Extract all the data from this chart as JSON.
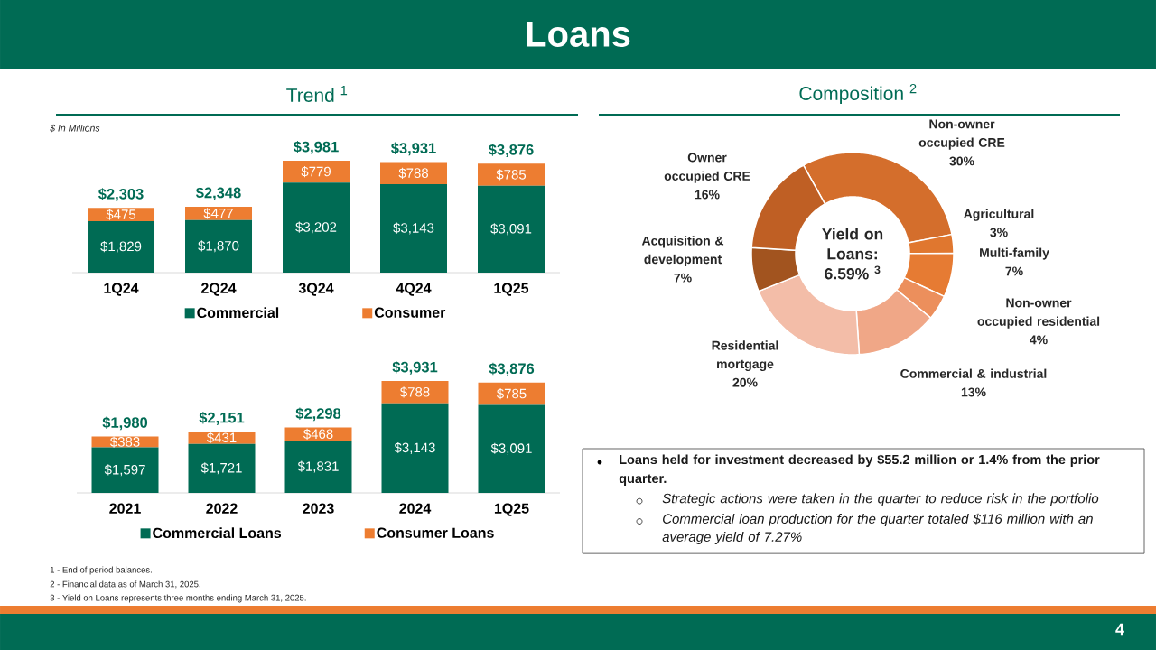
{
  "chart_data": [
    {
      "type": "bar",
      "title": "Loans",
      "subtitle": "Trend $^{1}$",
      "annotations": [
        "$ In Millions"
      ],
      "categories": [
        "1Q24",
        "2Q24",
        "3Q24",
        "4Q24",
        "1Q25"
      ],
      "stacked": true,
      "legend": "bottom",
      "series": [
        {
          "name": "Commercial",
          "color": "#006b54",
          "values": [
            1829,
            1870,
            3202,
            3143,
            3091
          ],
          "value_labels": [
            "$1,829",
            "$1,870",
            "$3,202",
            "$3,143",
            "$3,091"
          ]
        },
        {
          "name": "Consumer",
          "color": "#ed7d31",
          "values": [
            475,
            477,
            779,
            788,
            785
          ],
          "value_labels": [
            "$475",
            "$477",
            "$779",
            "$788",
            "$785"
          ]
        }
      ],
      "totals": [
        "$2,303",
        "$2,348",
        "$3,981",
        "$3,931",
        "$3,876"
      ]
    },
    {
      "type": "bar",
      "annotations": [
        "1 - End of period balances.",
        "2 - Financial data as of March 31, 2025.",
        "3 - Yield on Loans represents three months ending March 31, 2025."
      ],
      "categories": [
        "2021",
        "2022",
        "2023",
        "2024",
        "1Q25"
      ],
      "stacked": true,
      "legend": "bottom",
      "series": [
        {
          "name": "Commercial Loans",
          "color": "#006b54",
          "values": [
            1597,
            1721,
            1831,
            3143,
            3091
          ],
          "value_labels": [
            "$1,597",
            "$1,721",
            "$1,831",
            "$3,143",
            "$3,091"
          ]
        },
        {
          "name": "Consumer Loans",
          "color": "#ed7d31",
          "values": [
            383,
            431,
            468,
            788,
            785
          ],
          "value_labels": [
            "$383",
            "$431",
            "$468",
            "$788",
            "$785"
          ]
        }
      ],
      "totals": [
        "$1,980",
        "$2,151",
        "$2,298",
        "$3,931",
        "$3,876"
      ]
    },
    {
      "type": "donut",
      "title": "Composition $^{2}$",
      "categories": [
        "Non-owner occupied CRE",
        "Agricultural",
        "Multi-family",
        "Non-owner occupied residential",
        "Commercial & industrial",
        "Residential mortgage",
        "Acquisition & development",
        "Owner occupied CRE"
      ],
      "values": [
        30,
        3,
        7,
        4,
        13,
        20,
        7,
        16
      ],
      "colors": [
        "#d46e2c",
        "#e0772f",
        "#e67b33",
        "#ec8f5c",
        "#f0a787",
        "#f3bda8",
        "#a2541f",
        "#bf5f24"
      ],
      "value_labels": [
        "30%",
        "3%",
        "7%",
        "4%",
        "13%",
        "20%",
        "7%",
        "16%"
      ],
      "annotations": [
        "Yield on Loans: 6.59% $^{3}$"
      ]
    },
    {
      "type": "other",
      "annotations": [
        "Loans held for investment decreased by $55.2 million or 1.4% from the prior quarter.",
        "Strategic actions were taken in the quarter to reduce risk in the portfolio",
        "Commercial loan production for the quarter totaled $116 million with an average yield of 7.27%",
        "4"
      ]
    }
  ]
}
